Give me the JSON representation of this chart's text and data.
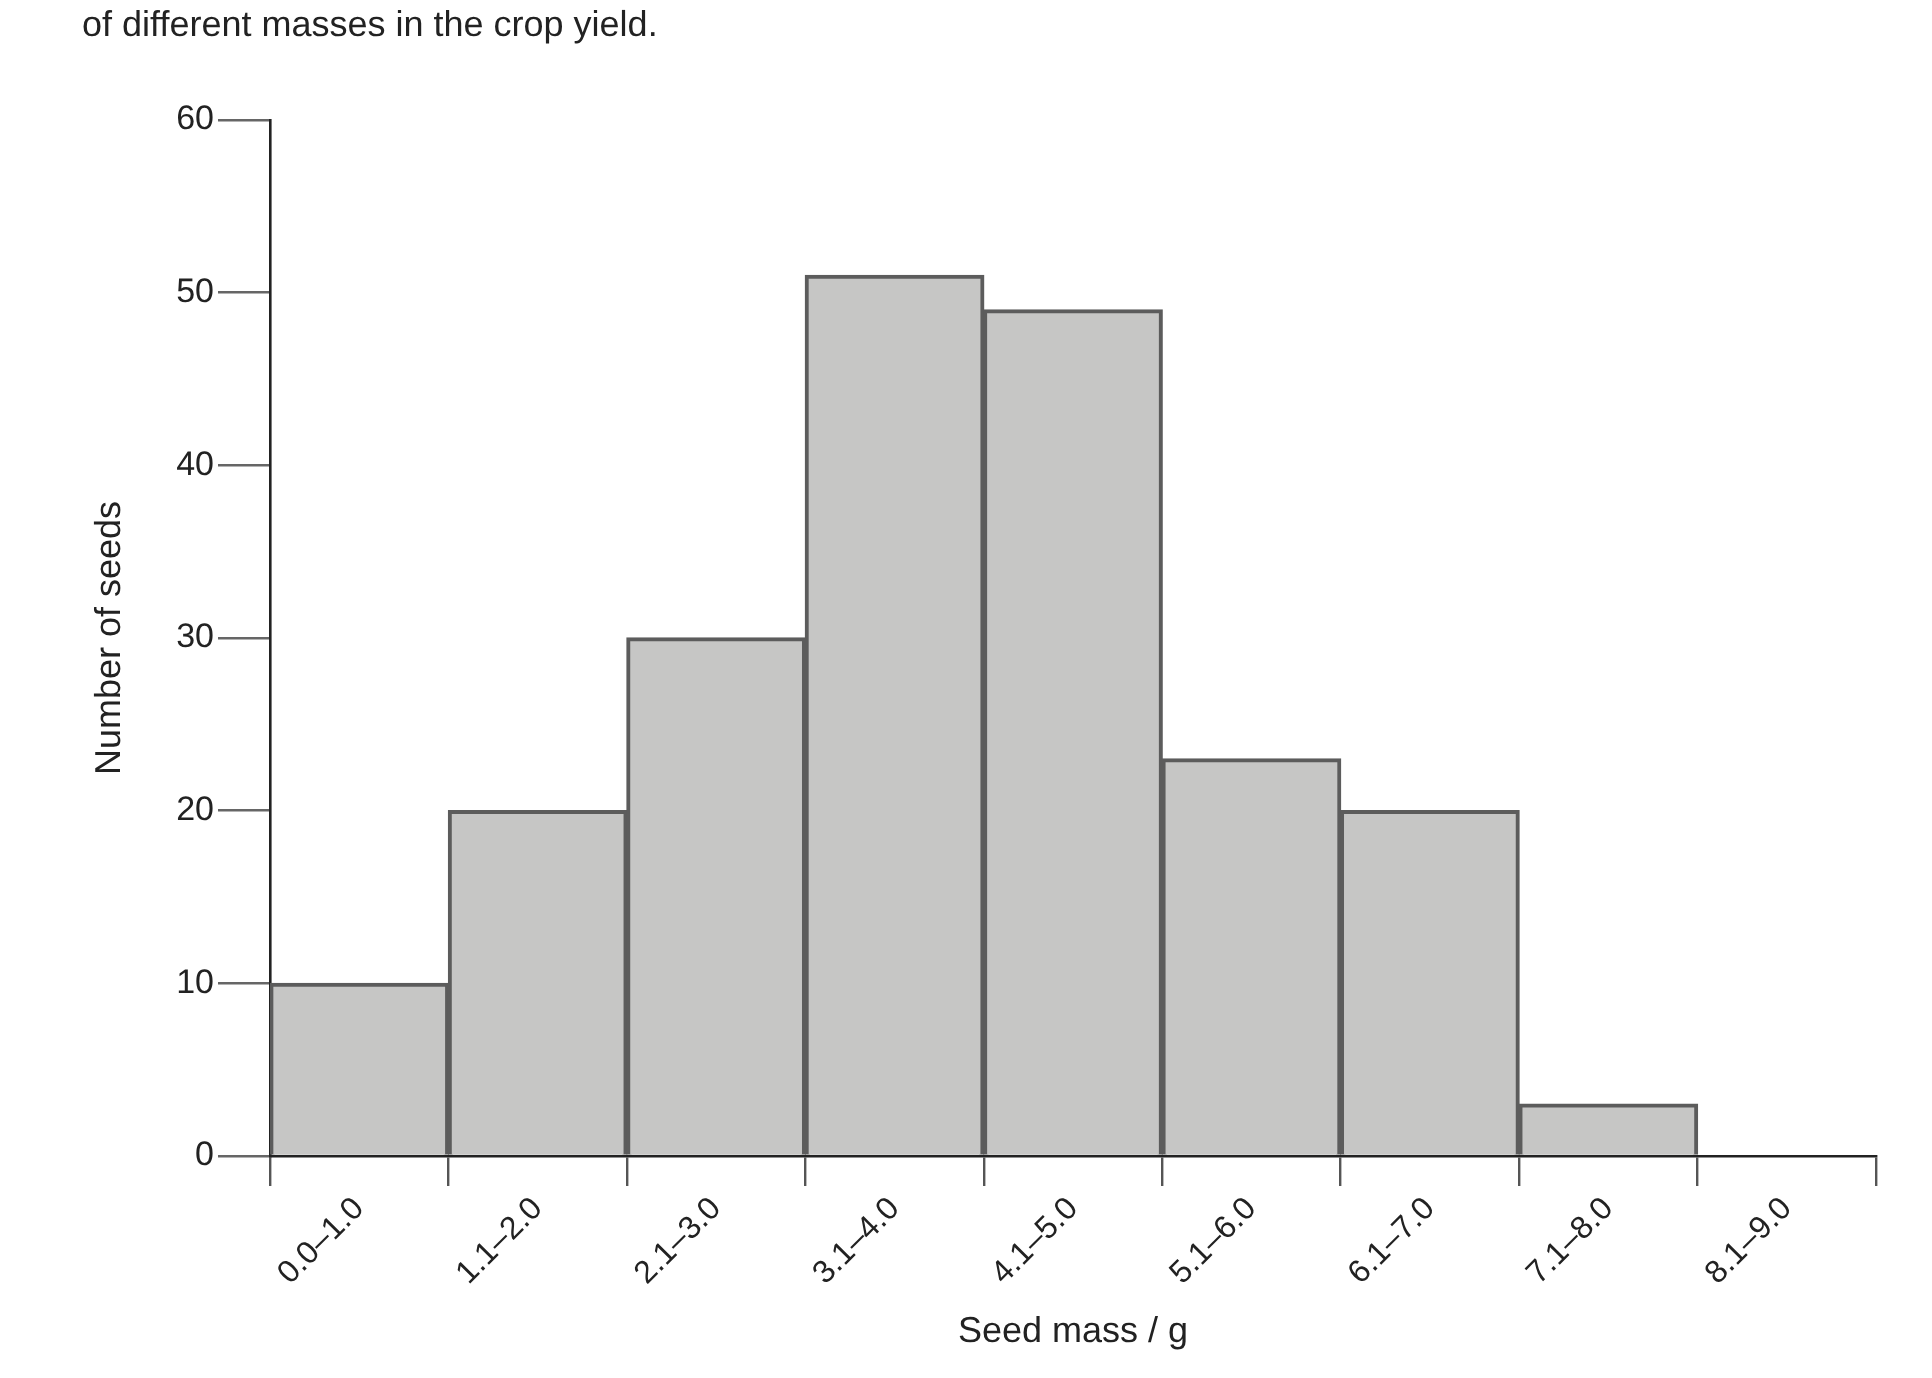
{
  "chart_data": {
    "type": "bar",
    "annotations": [
      "of different masses in the crop yield."
    ],
    "xlabel": "Seed mass / g",
    "ylabel": "Number of seeds",
    "categories": [
      "0.0–1.0",
      "1.1–2.0",
      "2.1–3.0",
      "3.1–4.0",
      "4.1–5.0",
      "5.1–6.0",
      "6.1–7.0",
      "7.1–8.0",
      "8.1–9.0"
    ],
    "values": [
      10,
      20,
      30,
      51,
      49,
      23,
      20,
      3,
      0
    ],
    "color": "#c6c6c5",
    "ylim": [
      0,
      60
    ],
    "yticks": [
      0,
      10,
      20,
      30,
      40,
      50,
      60
    ]
  }
}
